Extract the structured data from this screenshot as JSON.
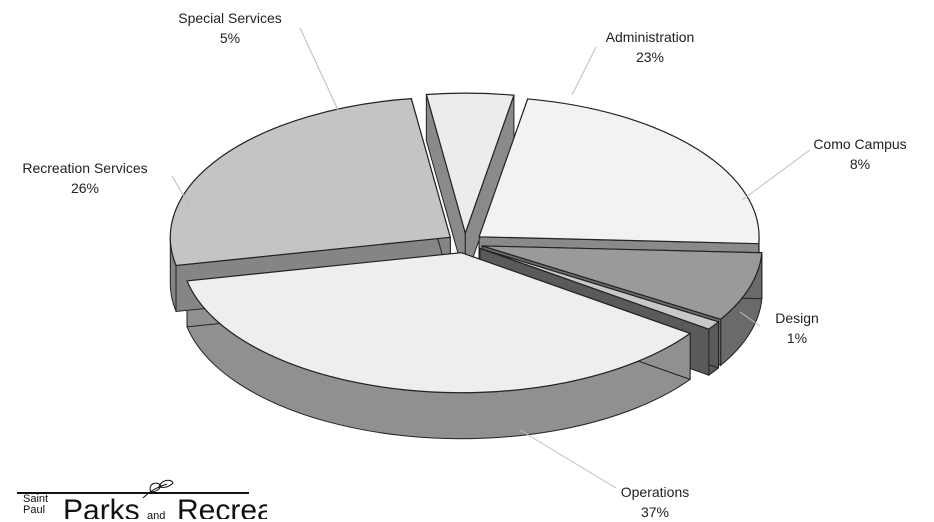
{
  "chart_data": {
    "type": "pie",
    "style": "3d-exploded",
    "title": "",
    "slices": [
      {
        "label": "Administration",
        "value": 23,
        "display": "23%",
        "color": "#f2f2f2",
        "side": "#8a8a8a"
      },
      {
        "label": "Como Campus",
        "value": 8,
        "display": "8%",
        "color": "#9a9a9a",
        "side": "#6a6a6a"
      },
      {
        "label": "Design",
        "value": 1,
        "display": "1%",
        "color": "#c8c8c8",
        "side": "#5a5a5a"
      },
      {
        "label": "Operations",
        "value": 37,
        "display": "37%",
        "color": "#eeeeee",
        "side": "#909090"
      },
      {
        "label": "Recreation Services",
        "value": 26,
        "display": "26%",
        "color": "#c4c4c4",
        "side": "#858585"
      },
      {
        "label": "Special Services",
        "value": 5,
        "display": "5%",
        "color": "#ececec",
        "side": "#8a8a8a"
      }
    ]
  },
  "logo": {
    "saint": "Saint",
    "paul": "Paul",
    "parks": "Parks",
    "and": "and",
    "recreation": "Recreation"
  }
}
